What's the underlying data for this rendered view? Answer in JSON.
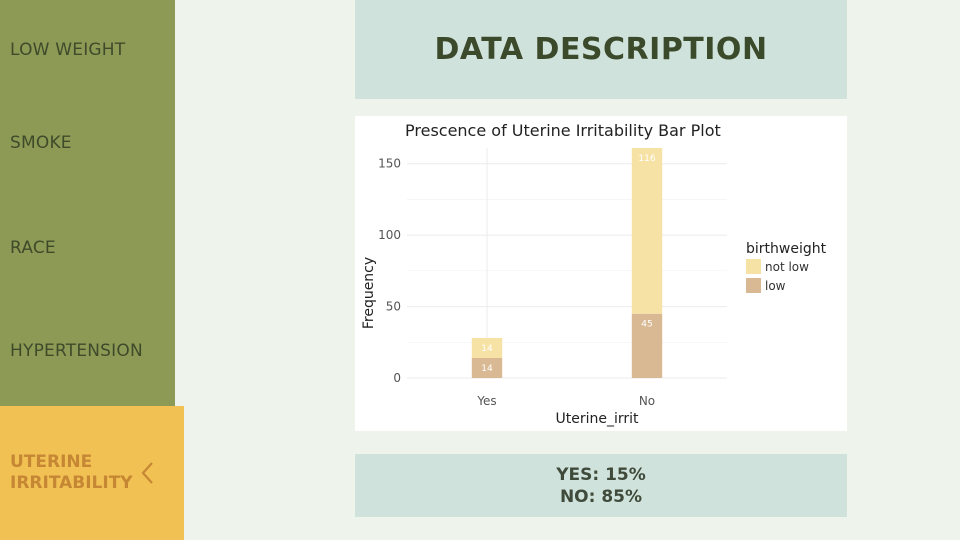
{
  "sidebar": {
    "items": [
      {
        "label": "LOW WEIGHT"
      },
      {
        "label": "SMOKE"
      },
      {
        "label": "RACE"
      },
      {
        "label": "HYPERTENSION"
      }
    ],
    "active": {
      "label": "UTERINE\nIRRITABILITY",
      "icon": "chevron-left-icon"
    }
  },
  "header": {
    "title": "DATA DESCRIPTION"
  },
  "chart_data": {
    "type": "bar",
    "stacked": true,
    "title": "Prescence of Uterine Irritability Bar Plot",
    "xlabel": "Uterine_irrit",
    "ylabel": "Frequency",
    "categories": [
      "Yes",
      "No"
    ],
    "series": [
      {
        "name": "low",
        "values": [
          14,
          45
        ],
        "labels": [
          "14",
          "45"
        ],
        "color": "#d9b993"
      },
      {
        "name": "not low",
        "values": [
          14,
          116
        ],
        "labels": [
          "14",
          "116"
        ],
        "color": "#f7e2a5"
      }
    ],
    "yticks": [
      0,
      50,
      100,
      150
    ],
    "ylim": [
      0,
      161
    ],
    "legend": {
      "title": "birthweight",
      "entries": [
        "not low",
        "low"
      ],
      "position": "right"
    },
    "grid": true
  },
  "summary": {
    "line1": "YES: 15%",
    "line2": "NO: 85%"
  },
  "colors": {
    "sidebar": "#8c9a56",
    "active": "#f2c154",
    "header": "#d0e2dc",
    "background": "#eef4ec"
  }
}
